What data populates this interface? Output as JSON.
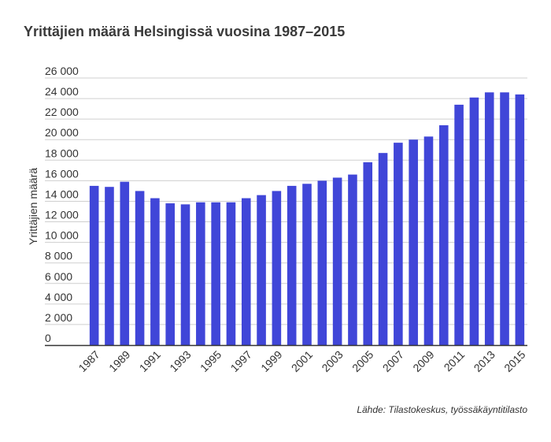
{
  "chart_data": {
    "type": "bar",
    "title": "Yrittäjien määrä Helsingissä vuosina 1987–2015",
    "ylabel": "Yrittäjien määrä",
    "xlabel": "",
    "source": "Lähde: Tilastokeskus, työssäkäyntitilasto",
    "ylim": [
      0,
      26000
    ],
    "y_ticks": [
      "0",
      "2 000",
      "4 000",
      "6 000",
      "8 000",
      "10 000",
      "12 000",
      "14 000",
      "16 000",
      "18 000",
      "20 000",
      "22 000",
      "24 000",
      "26 000"
    ],
    "y_tick_values": [
      0,
      2000,
      4000,
      6000,
      8000,
      10000,
      12000,
      14000,
      16000,
      18000,
      20000,
      22000,
      24000,
      26000
    ],
    "categories": [
      "1987",
      "1988",
      "1989",
      "1990",
      "1991",
      "1992",
      "1993",
      "1994",
      "1995",
      "1996",
      "1997",
      "1998",
      "1999",
      "2000",
      "2001",
      "2002",
      "2003",
      "2004",
      "2005",
      "2006",
      "2007",
      "2008",
      "2009",
      "2010",
      "2011",
      "2012",
      "2013",
      "2014",
      "2015"
    ],
    "x_tick_labels": [
      "1987",
      "1989",
      "1991",
      "1993",
      "1995",
      "1997",
      "1999",
      "2001",
      "2003",
      "2005",
      "2007",
      "2009",
      "2011",
      "2013",
      "2015"
    ],
    "values": [
      15500,
      15400,
      15900,
      15000,
      14300,
      13800,
      13700,
      13900,
      13900,
      13900,
      14300,
      14600,
      15000,
      15500,
      15700,
      16000,
      16300,
      16600,
      17800,
      18700,
      19700,
      20000,
      20300,
      21400,
      23400,
      24100,
      24600,
      24600,
      24400
    ],
    "bar_color": "#4046d8",
    "grid": true
  }
}
